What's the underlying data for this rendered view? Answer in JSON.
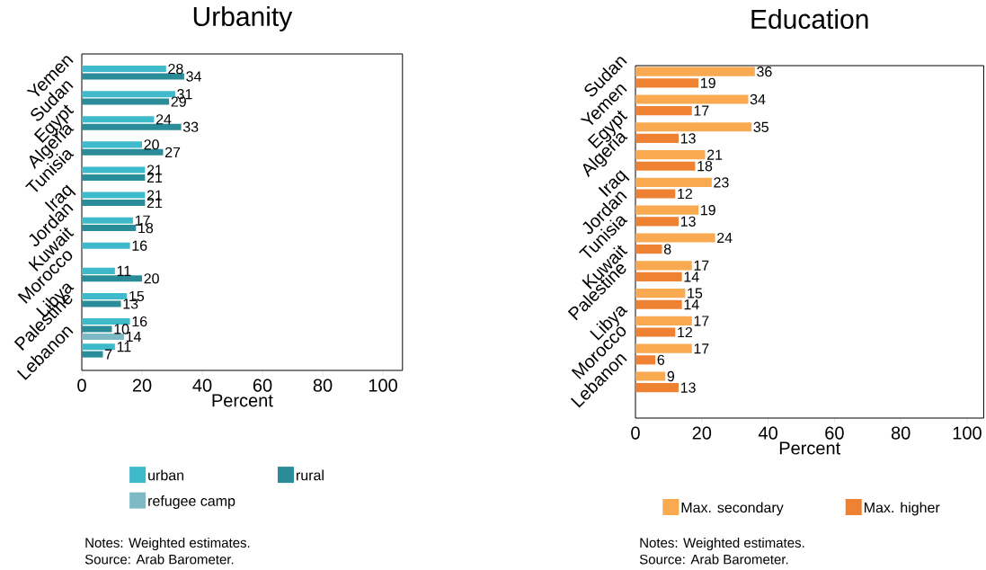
{
  "chart_data": [
    {
      "type": "bar",
      "orientation": "horizontal",
      "title": "Urbanity",
      "xlabel": "Percent",
      "categories": [
        "Yemen",
        "Sudan",
        "Egypt",
        "Algeria",
        "Tunisia",
        "Iraq",
        "Jordan",
        "Kuwait",
        "Morocco",
        "Libya",
        "Palestine",
        "Lebanon"
      ],
      "series": [
        {
          "name": "urban",
          "color": "#3fbacb",
          "values": [
            28,
            31,
            24,
            20,
            21,
            21,
            17,
            16,
            11,
            15,
            16,
            11
          ]
        },
        {
          "name": "rural",
          "color": "#2a8c99",
          "values": [
            34,
            29,
            33,
            27,
            21,
            21,
            18,
            null,
            20,
            13,
            10,
            7
          ]
        },
        {
          "name": "refugee camp",
          "color": "#7dbac6",
          "values": [
            null,
            null,
            null,
            null,
            null,
            null,
            null,
            null,
            null,
            null,
            14,
            null
          ]
        }
      ],
      "xlim": [
        0,
        106.5
      ],
      "xticks": [
        0,
        20,
        40,
        60,
        80,
        100
      ],
      "data_labels": true,
      "legend": "bottom",
      "annotations": [
        "Notes: Weighted estimates.",
        "Source: Arab Barometer."
      ]
    },
    {
      "type": "bar",
      "orientation": "horizontal",
      "title": "Education",
      "xlabel": "Percent",
      "categories": [
        "Sudan",
        "Yemen",
        "Egypt",
        "Algeria",
        "Iraq",
        "Jordan",
        "Tunisia",
        "Kuwait",
        "Palestine",
        "Libya",
        "Morocco",
        "Lebanon"
      ],
      "series": [
        {
          "name": "Max. secondary",
          "color": "#f9a94f",
          "values": [
            36,
            34,
            35,
            21,
            23,
            19,
            24,
            17,
            15,
            17,
            17,
            9
          ]
        },
        {
          "name": "Max. higher",
          "color": "#ef8132",
          "values": [
            19,
            17,
            13,
            18,
            12,
            13,
            8,
            14,
            14,
            12,
            6,
            13
          ]
        }
      ],
      "xlim": [
        0,
        105
      ],
      "xticks": [
        0,
        20,
        40,
        60,
        80,
        100
      ],
      "data_labels": true,
      "legend": "bottom",
      "annotations": [
        "Notes: Weighted estimates.",
        "Source: Arab Barometer."
      ]
    }
  ]
}
